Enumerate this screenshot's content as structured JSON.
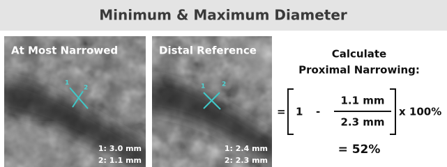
{
  "header": {
    "title": "Minimum & Maximum Diameter"
  },
  "panels": [
    {
      "label": "At Most Narrowed",
      "markers": [
        "1",
        "2"
      ],
      "measurements": [
        "1: 3.0 mm",
        "2: 1.1 mm"
      ]
    },
    {
      "label": "Distal Reference",
      "markers": [
        "1",
        "2"
      ],
      "measurements": [
        "1: 2.4 mm",
        "2: 2.3 mm"
      ]
    }
  ],
  "calculation": {
    "heading": [
      "Calculate",
      "Proximal Narrowing:"
    ],
    "equals": "=",
    "one": "1",
    "minus": "-",
    "numerator": "1.1 mm",
    "denominator": "2.3 mm",
    "multiplier": "x 100%",
    "result": "= 52%"
  }
}
